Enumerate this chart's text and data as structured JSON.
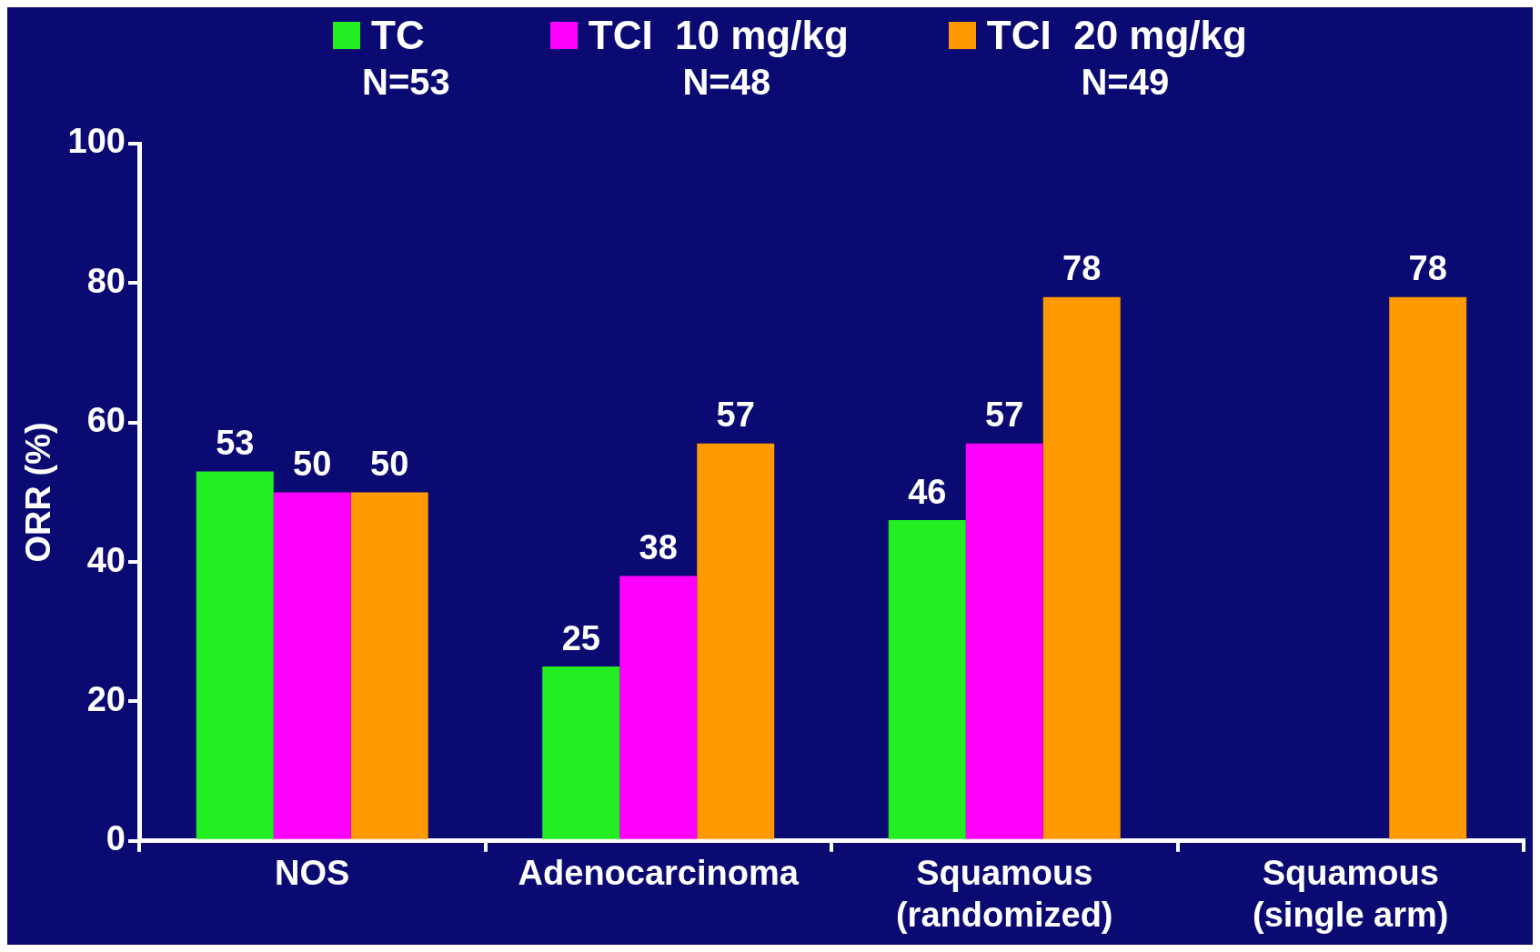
{
  "chart_data": {
    "type": "bar",
    "ylabel": "ORR (%)",
    "categories": [
      "NOS",
      "Adenocarcinoma",
      "Squamous (randomized)",
      "Squamous (single arm)"
    ],
    "series": [
      {
        "name": "TC",
        "color": "#22ee22",
        "values": [
          53,
          25,
          46,
          null
        ]
      },
      {
        "name": "TCI  10 mg/kg",
        "color": "#ff00ff",
        "values": [
          50,
          38,
          57,
          null
        ]
      },
      {
        "name": "TCI  20 mg/kg",
        "color": "#ff9900",
        "values": [
          50,
          57,
          78,
          78
        ]
      }
    ],
    "annotations": [
      "N=53",
      "N=48",
      "N=49"
    ],
    "ylim": [
      0,
      100
    ],
    "yticks": [
      0,
      20,
      40,
      60,
      80,
      100
    ],
    "grid": false,
    "legend": "top",
    "data_labels": true
  }
}
